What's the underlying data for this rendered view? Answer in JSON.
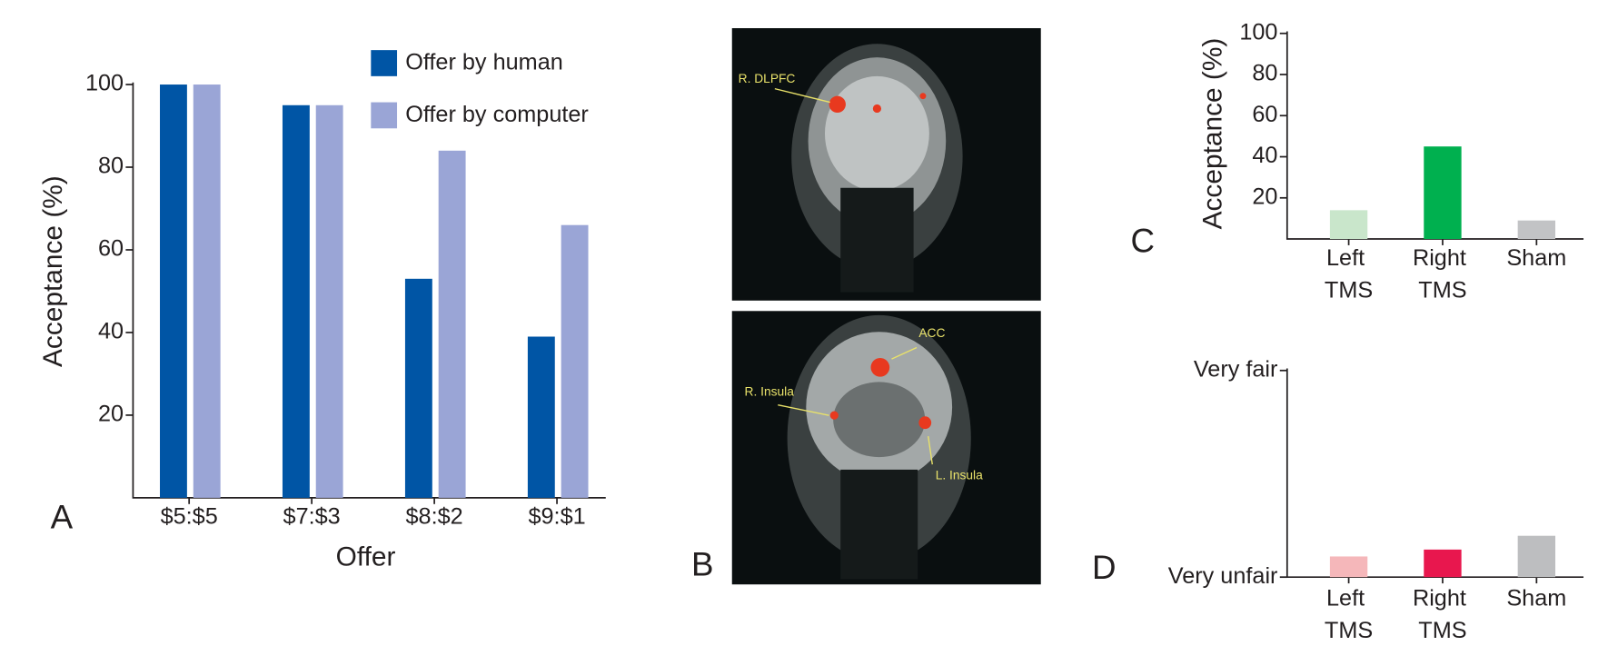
{
  "chart_data": [
    {
      "type": "bar",
      "panel_label": "A",
      "x_label": "Offer",
      "y_label": "Acceptance (%)",
      "categories": [
        "$5:$5",
        "$7:$3",
        "$8:$2",
        "$9:$1"
      ],
      "series": [
        {
          "name": "Offer by human",
          "color": "#0055a5",
          "values": [
            100,
            95,
            53,
            39
          ]
        },
        {
          "name": "Offer by computer",
          "color": "#9aa5d6",
          "values": [
            100,
            95,
            84,
            66
          ]
        }
      ],
      "ylim": [
        0,
        100
      ],
      "yticks": [
        20,
        40,
        60,
        80,
        100
      ]
    },
    {
      "type": "bar",
      "panel_label": "C",
      "y_label": "Acceptance (%)",
      "categories": [
        "Left TMS",
        "Right TMS",
        "Sham"
      ],
      "values": [
        14,
        45,
        9
      ],
      "colors": [
        "#c9e6cb",
        "#00b04f",
        "#c2c3c5"
      ],
      "ylim": [
        0,
        100
      ],
      "yticks": [
        20,
        40,
        60,
        80,
        100
      ]
    },
    {
      "type": "bar",
      "panel_label": "D",
      "categories": [
        "Left TMS",
        "Right TMS",
        "Sham"
      ],
      "values": [
        1.6,
        1.8,
        2.2
      ],
      "colors": [
        "#f5b7ba",
        "#e8174e",
        "#bdbec0"
      ],
      "ylim": [
        1,
        7
      ],
      "yticks": [
        {
          "value": 1,
          "label": "Very unfair"
        },
        {
          "value": 7,
          "label": "Very fair"
        }
      ]
    }
  ],
  "images": {
    "panel_label": "B",
    "labels": [
      "R. DLPFC",
      "ACC",
      "R. Insula",
      "L. Insula"
    ]
  }
}
